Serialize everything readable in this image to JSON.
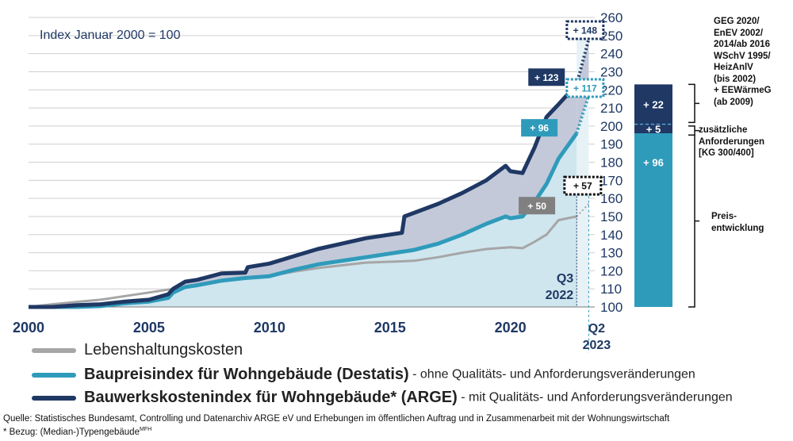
{
  "chart_data": {
    "type": "area",
    "subtitle": "Index Januar 2000 = 100",
    "xlim": [
      2000,
      2023.5
    ],
    "ylim": [
      100,
      260
    ],
    "x_ticks": [
      "2000",
      "2005",
      "2010",
      "2015",
      "2020"
    ],
    "y_ticks": [
      100,
      110,
      120,
      130,
      140,
      150,
      160,
      170,
      180,
      190,
      200,
      210,
      220,
      230,
      240,
      250,
      260
    ],
    "q3_label": [
      "Q3",
      "2022"
    ],
    "q2_label": [
      "Q2",
      "2023"
    ],
    "series": [
      {
        "name": "Lebenshaltungskosten",
        "color": "#a6a6a6",
        "x": [
          2000,
          2001,
          2002,
          2003,
          2004,
          2005,
          2006,
          2007,
          2008,
          2009,
          2010,
          2011,
          2012,
          2013,
          2014,
          2015,
          2016,
          2017,
          2018,
          2019,
          2020,
          2020.5,
          2021,
          2021.5,
          2022,
          2022.75
        ],
        "y": [
          100,
          101.5,
          102.8,
          104,
          106,
          108,
          110,
          112.5,
          115,
          116,
          117,
          119.5,
          121.5,
          123,
          124.5,
          125,
          125.5,
          127.5,
          130,
          132,
          133,
          132.5,
          136,
          140,
          148,
          150
        ],
        "projection": {
          "x": [
            2022.75,
            2023.25
          ],
          "y": [
            150,
            157
          ]
        }
      },
      {
        "name": "Baupreisindex für Wohngebäude (Destatis)",
        "color": "#2f9bbb",
        "x": [
          2000,
          2001,
          2002,
          2003,
          2004,
          2005,
          2005.8,
          2006,
          2006.5,
          2007,
          2008,
          2009,
          2010,
          2011,
          2012,
          2013,
          2014,
          2015,
          2016,
          2017,
          2018,
          2019,
          2019.8,
          2020,
          2020.5,
          2021,
          2021.5,
          2022,
          2022.75
        ],
        "y": [
          100,
          100,
          100,
          100.5,
          102,
          103,
          105,
          108,
          111,
          112,
          114.5,
          116,
          117,
          120.5,
          123.5,
          125.5,
          127.5,
          129.5,
          131.5,
          135,
          140,
          146,
          150,
          149,
          150,
          158,
          168,
          182,
          196
        ],
        "projection": {
          "x": [
            2022.75,
            2023.25
          ],
          "y": [
            196,
            217
          ]
        }
      },
      {
        "name": "Bauwerkskostenindex für Wohngebäude* (ARGE)",
        "color": "#1f3864",
        "x": [
          2000,
          2001,
          2002,
          2003,
          2004,
          2005,
          2005.8,
          2006,
          2006.5,
          2007,
          2008,
          2009,
          2009.1,
          2010,
          2011,
          2012,
          2013,
          2014,
          2015,
          2015.5,
          2015.6,
          2016,
          2017,
          2018,
          2019,
          2019.8,
          2020,
          2020.5,
          2021,
          2021.5,
          2022,
          2022.75
        ],
        "y": [
          100,
          100,
          101,
          101.5,
          103,
          104,
          107,
          110,
          114,
          115,
          118.5,
          119,
          122,
          124,
          128,
          132,
          135,
          138,
          140,
          141,
          150,
          152,
          157,
          163,
          170,
          178,
          175,
          174,
          188,
          205,
          212,
          223
        ],
        "projection": {
          "x": [
            2022.75,
            2023.25
          ],
          "y": [
            223,
            248
          ]
        }
      }
    ],
    "value_labels": [
      {
        "text": "+ 148",
        "x": 2023.1,
        "y": 253,
        "style": "dotted",
        "color": "#1f3864"
      },
      {
        "text": "+ 123",
        "x": 2021.5,
        "y": 227,
        "style": "solid",
        "color": "#1f3864"
      },
      {
        "text": "+ 117",
        "x": 2023.1,
        "y": 221,
        "style": "dotted",
        "color": "#2f9bbb"
      },
      {
        "text": "+ 96",
        "x": 2021.2,
        "y": 199,
        "style": "solid",
        "color": "#2f9bbb"
      },
      {
        "text": "+ 57",
        "x": 2023.0,
        "y": 167,
        "style": "dotted",
        "color": "#111111"
      },
      {
        "text": "+ 50",
        "x": 2021.1,
        "y": 156,
        "style": "solid",
        "color": "#808080"
      }
    ],
    "stacked_bar": {
      "segments": [
        {
          "label": "+ 96",
          "from": 100,
          "to": 196,
          "color": "#2f9bbb"
        },
        {
          "label": "+ 5",
          "from": 196,
          "to": 201,
          "color": "#1f3864"
        },
        {
          "label": "+ 22",
          "from": 201,
          "to": 223,
          "color": "#1f3864"
        }
      ]
    }
  },
  "legend": [
    {
      "bold": "",
      "text": "Lebenshaltungskosten",
      "desc": "",
      "color": "#a6a6a6"
    },
    {
      "bold": "Baupreisindex für Wohngebäude (Destatis)",
      "text": "",
      "desc": " - ohne Qualitäts- und Anforderungsveränderungen",
      "color": "#2f9bbb"
    },
    {
      "bold": "Bauwerkskostenindex für Wohngebäude* (ARGE)",
      "text": "",
      "desc": " - mit Qualitäts- und Anforderungsveränderungen",
      "color": "#1f3864"
    }
  ],
  "right_annotations": {
    "top": "GEG 2020/\nEnEV 2002/\n2014/ab 2016\nWSchV 1995/\nHeizAnlV\n(bis 2002)\n+ EEWärmeG\n(ab 2009)",
    "middle": "zusätzliche\nAnforderungen\n[KG 300/400]",
    "bottom": "Preis-\nentwicklung"
  },
  "source": {
    "line1": "Quelle: Statistisches Bundesamt, Controlling und Datenarchiv ARGE eV und Erhebungen im öffentlichen Auftrag und in Zusammenarbeit mit der Wohnungswirtschaft",
    "line2": "* Bezug: (Median-)Typengebäude",
    "line2_sup": "MFH"
  }
}
